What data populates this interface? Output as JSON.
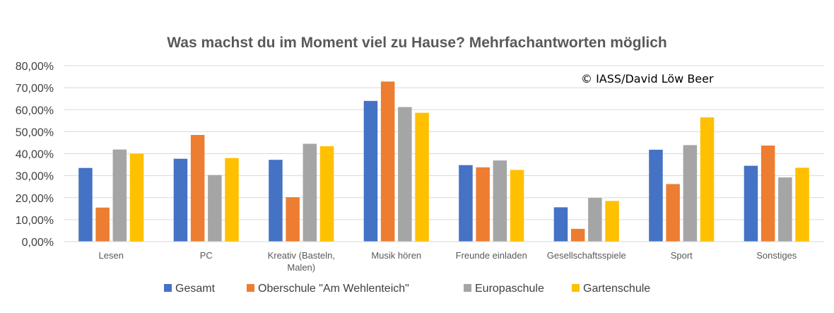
{
  "chart_data": {
    "type": "bar",
    "title": "Was machst du im Moment viel zu Hause? Mehrfachantworten möglich",
    "annotation": "© IASS/David Löw Beer",
    "categories": [
      "Lesen",
      "PC",
      "Kreativ (Basteln, Malen)",
      "Musik hören",
      "Freunde einladen",
      "Gesellschaftsspiele",
      "Sport",
      "Sonstiges"
    ],
    "category_lines": [
      [
        "Lesen"
      ],
      [
        "PC"
      ],
      [
        "Kreativ (Basteln,",
        "Malen)"
      ],
      [
        "Musik hören"
      ],
      [
        "Freunde einladen"
      ],
      [
        "Gesellschaftsspiele"
      ],
      [
        "Sport"
      ],
      [
        "Sonstiges"
      ]
    ],
    "series": [
      {
        "name": "Gesamt",
        "color": "#4472C4",
        "values": [
          33.5,
          37.7,
          37.2,
          64.0,
          34.8,
          15.6,
          41.8,
          34.5
        ]
      },
      {
        "name": "Oberschule \"Am Wehlenteich\"",
        "color": "#ED7D31",
        "values": [
          15.5,
          48.5,
          20.2,
          72.8,
          33.8,
          5.8,
          26.2,
          43.7
        ]
      },
      {
        "name": "Europaschule",
        "color": "#A5A5A5",
        "values": [
          41.9,
          30.3,
          44.5,
          61.2,
          36.9,
          19.9,
          43.9,
          29.2
        ]
      },
      {
        "name": "Gartenschule",
        "color": "#FFC000",
        "values": [
          40.0,
          38.0,
          43.4,
          58.6,
          32.6,
          18.5,
          56.5,
          33.6
        ]
      }
    ],
    "yticks": [
      "0,00%",
      "10,00%",
      "20,00%",
      "30,00%",
      "40,00%",
      "50,00%",
      "60,00%",
      "70,00%",
      "80,00%"
    ],
    "ylim": [
      0,
      80
    ],
    "grid": true,
    "legend_position": "bottom"
  }
}
